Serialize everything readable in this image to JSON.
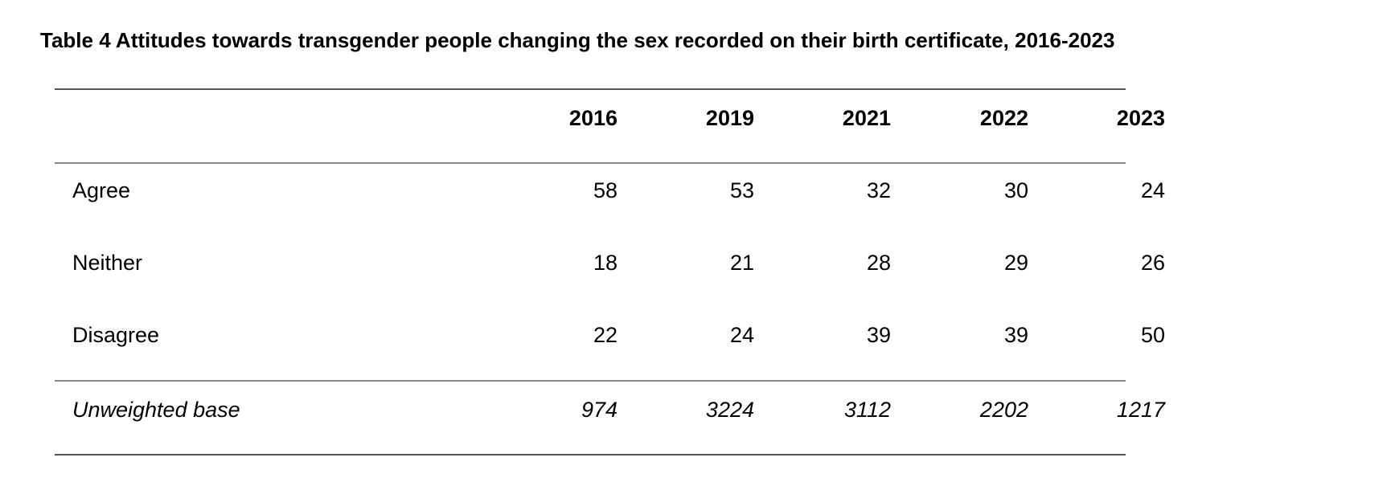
{
  "title": "Table 4 Attitudes towards transgender people changing the sex recorded on their birth certificate, 2016-2023",
  "table": {
    "columns": [
      "2016",
      "2019",
      "2021",
      "2022",
      "2023"
    ],
    "rows": [
      {
        "label": "Agree",
        "values": [
          "58",
          "53",
          "32",
          "30",
          "24"
        ]
      },
      {
        "label": "Neither",
        "values": [
          "18",
          "21",
          "28",
          "29",
          "26"
        ]
      },
      {
        "label": "Disagree",
        "values": [
          "22",
          "24",
          "39",
          "39",
          "50"
        ]
      }
    ],
    "base": {
      "label": "Unweighted base",
      "values": [
        "974",
        "3224",
        "3112",
        "2202",
        "1217"
      ]
    }
  }
}
